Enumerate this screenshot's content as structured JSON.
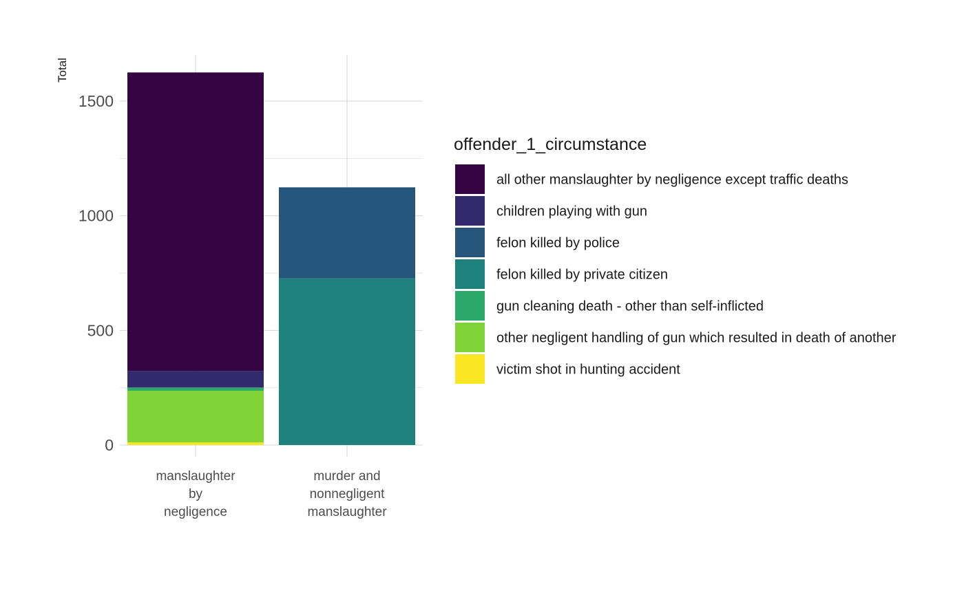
{
  "chart_data": {
    "type": "bar",
    "stacked": true,
    "title": "",
    "xlabel": "",
    "ylabel": "Total",
    "ylim": [
      0,
      1700
    ],
    "yticks": [
      0,
      500,
      1000,
      1500
    ],
    "grid": true,
    "legend_position": "right",
    "legend_title": "offender_1_circumstance",
    "categories": [
      [
        "manslaughter",
        "by",
        "negligence"
      ],
      [
        "murder and",
        "nonnegligent",
        "manslaughter"
      ]
    ],
    "series": [
      {
        "name": "all other manslaughter by negligence except traffic deaths",
        "color": "#350543",
        "values": [
          1302,
          0
        ]
      },
      {
        "name": "children playing with gun",
        "color": "#322a6c",
        "values": [
          72,
          0
        ]
      },
      {
        "name": "felon killed by police",
        "color": "#25557a",
        "values": [
          0,
          397
        ]
      },
      {
        "name": "felon killed by private citizen",
        "color": "#1f817b",
        "values": [
          0,
          727
        ]
      },
      {
        "name": "gun cleaning death - other than self-inflicted",
        "color": "#2ba86a",
        "values": [
          14,
          0
        ]
      },
      {
        "name": "other negligent handling of gun which resulted in death of another",
        "color": "#80d336",
        "values": [
          225,
          0
        ]
      },
      {
        "name": "victim shot in hunting accident",
        "color": "#fae622",
        "values": [
          12,
          0
        ]
      }
    ]
  }
}
